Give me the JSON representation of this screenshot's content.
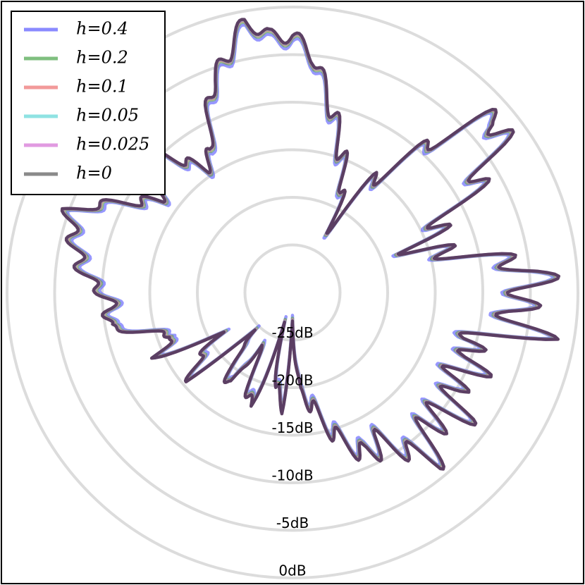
{
  "chart_data": {
    "type": "line",
    "subtype": "polar",
    "title": "",
    "radial_unit": "dB",
    "radial_ticks": [
      -25,
      -20,
      -15,
      -10,
      -5,
      0
    ],
    "radial_tick_labels": [
      "-25dB",
      "-20dB",
      "-15dB",
      "-10dB",
      "-5dB",
      "0dB"
    ],
    "radial_range": [
      -30,
      0
    ],
    "grid": true,
    "legend_position": "top-left",
    "angle_step_deg": 5,
    "base_pattern_db": [
      -3,
      -5,
      -9,
      -12,
      -15,
      -17,
      -22,
      -16,
      -12,
      -6,
      -1,
      -4,
      -8,
      -13,
      -16,
      -14,
      -9,
      -4,
      -5,
      -7,
      -4,
      -12,
      -9,
      -10,
      -11,
      -8,
      -10,
      -10,
      -7,
      -10,
      -12,
      -11,
      -13,
      -15,
      -18,
      -19,
      -27,
      -18,
      -20,
      -26,
      -17,
      -19,
      -24,
      -18,
      -20,
      -25,
      -16,
      -18,
      -21,
      -14,
      -17,
      -14,
      -10,
      -11,
      -10,
      -8,
      -7,
      -6,
      -5,
      -8,
      -11,
      -13,
      -11,
      -9,
      -12,
      -14,
      -13,
      -9,
      -6,
      -4,
      -1,
      -3
    ],
    "series": [
      {
        "name": "h=0.4",
        "h": 0.4,
        "color": "#6b6bff",
        "opacity": 0.7,
        "offset_db": -0.6
      },
      {
        "name": "h=0.2",
        "h": 0.2,
        "color": "#5aa85a",
        "opacity": 0.65,
        "offset_db": -0.3
      },
      {
        "name": "h=0.1",
        "h": 0.1,
        "color": "#ef7878",
        "opacity": 0.65,
        "offset_db": -0.15
      },
      {
        "name": "h=0.05",
        "h": 0.05,
        "color": "#5fd3d3",
        "opacity": 0.65,
        "offset_db": -0.07
      },
      {
        "name": "h=0.025",
        "h": 0.025,
        "color": "#d87ad8",
        "opacity": 0.65,
        "offset_db": -0.03
      },
      {
        "name": "h=0",
        "h": 0,
        "color": "#4a3050",
        "opacity": 0.85,
        "offset_db": 0
      }
    ],
    "legend_entries": [
      {
        "label": "h=0.4",
        "color": "#8a8aff"
      },
      {
        "label": "h=0.2",
        "color": "#7fbf7f"
      },
      {
        "label": "h=0.1",
        "color": "#f29a9a"
      },
      {
        "label": "h=0.05",
        "color": "#8fe3e3"
      },
      {
        "label": "h=0.025",
        "color": "#e19ae1"
      },
      {
        "label": "h=0",
        "color": "#8a8a8a"
      }
    ]
  }
}
